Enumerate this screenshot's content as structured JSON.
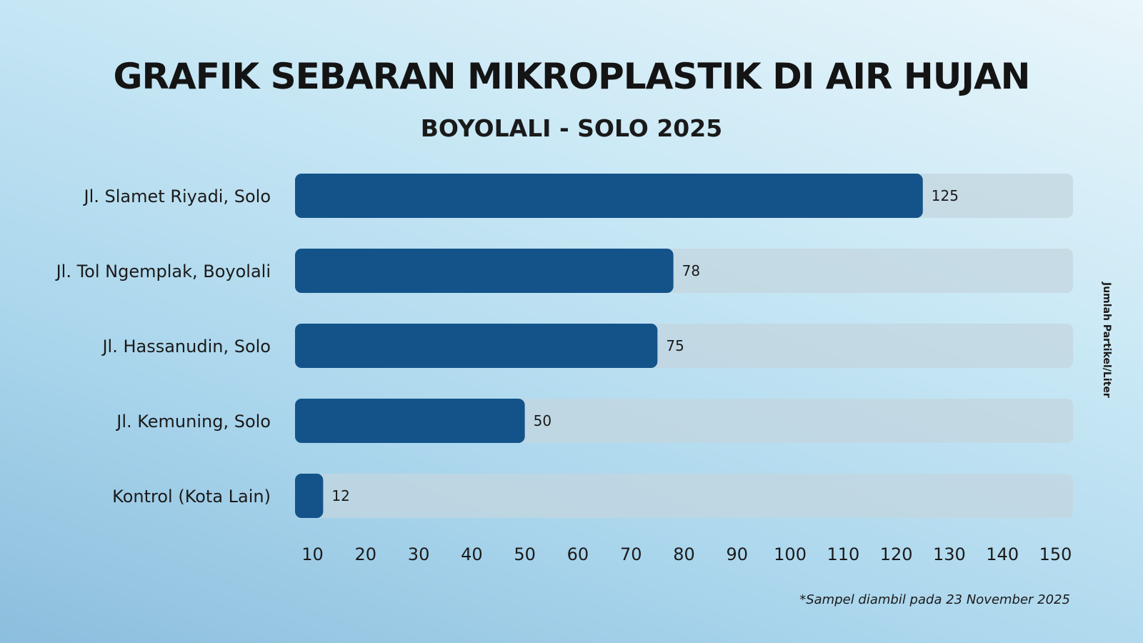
{
  "chart_data": {
    "type": "bar",
    "orientation": "horizontal",
    "title": "GRAFIK SEBARAN MIKROPLASTIK DI AIR HUJAN",
    "subtitle": "BOYOLALI - SOLO 2025",
    "categories": [
      "Jl. Slamet Riyadi, Solo",
      "Jl. Tol Ngemplak, Boyolali",
      "Jl. Hassanudin, Solo",
      "Jl. Kemuning, Solo",
      "Kontrol (Kota Lain)"
    ],
    "values": [
      125,
      78,
      75,
      50,
      12
    ],
    "value_labels": [
      "125",
      "78",
      "75",
      "50",
      "12"
    ],
    "xticks": [
      10,
      20,
      30,
      40,
      50,
      60,
      70,
      80,
      90,
      100,
      110,
      120,
      130,
      140,
      150
    ],
    "xlim": [
      6.7,
      153.3
    ],
    "xlabel": "",
    "ylabel": "Jumlah Partikel/Liter",
    "grid": false,
    "legend": "none",
    "bar_color": "#14538a",
    "track_color": "#c3d6df",
    "footnote": "*Sampel diambil pada 23 November 2025"
  }
}
